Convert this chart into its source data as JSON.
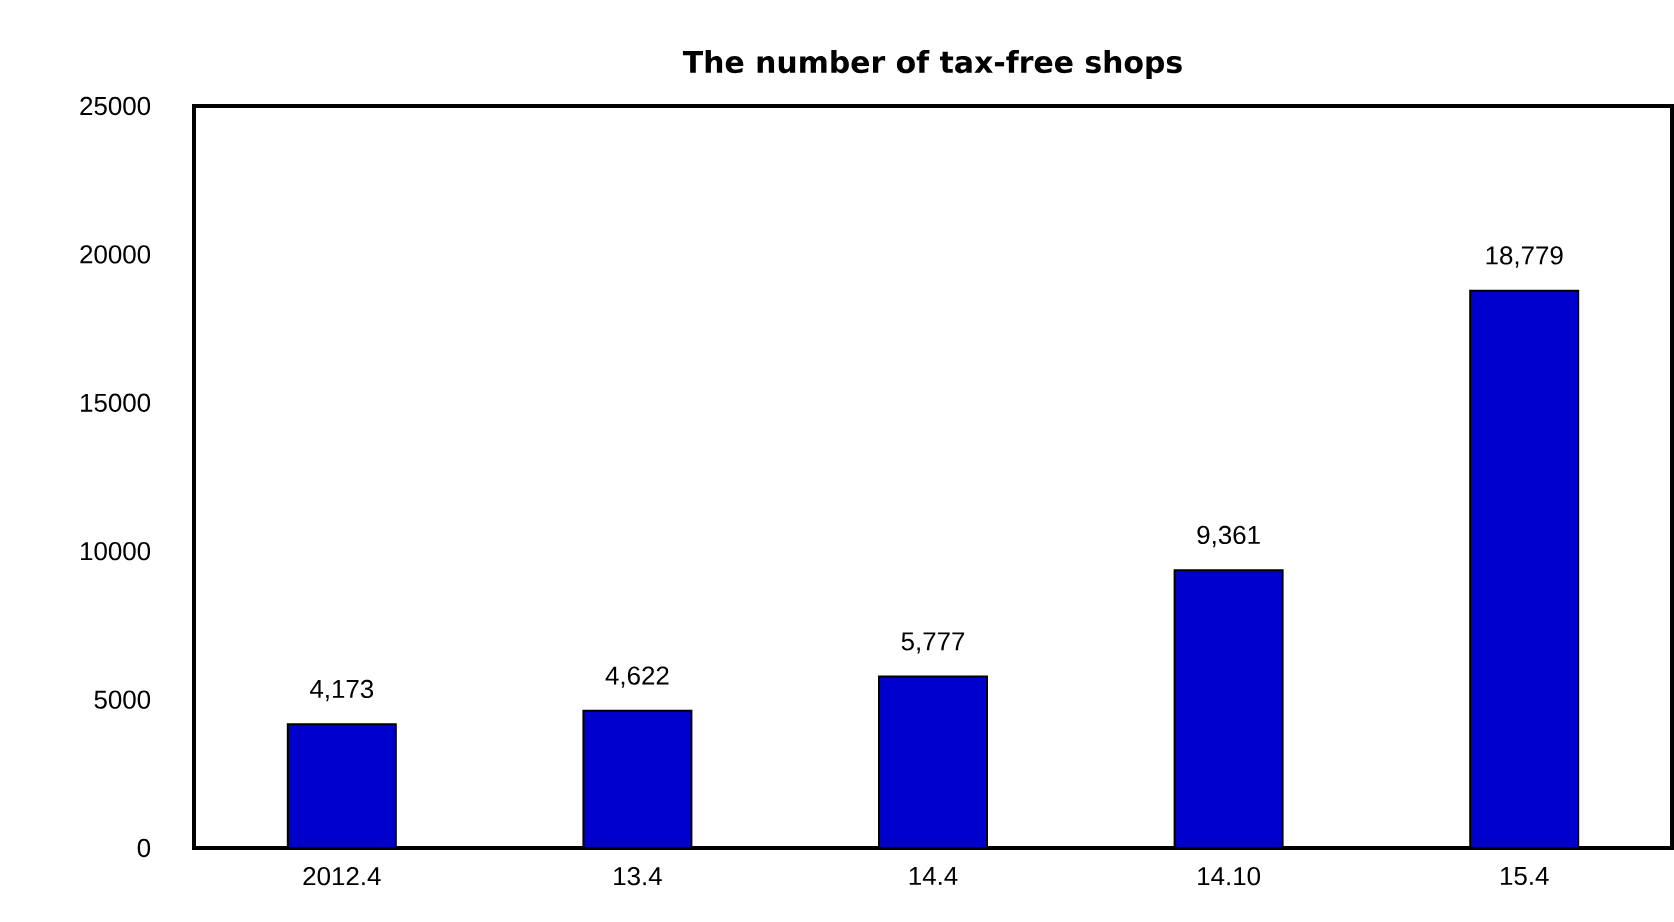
{
  "chart_data": {
    "type": "bar",
    "title": "The number of tax-free shops",
    "categories": [
      "2012.4",
      "13.4",
      "14.4",
      "14.10",
      "15.4"
    ],
    "values": [
      4173,
      4622,
      5777,
      9361,
      18779
    ],
    "value_labels": [
      "4,173",
      "4,622",
      "5,777",
      "9,361",
      "18,779"
    ],
    "color": "#0000cc",
    "ylim": [
      0,
      25000
    ],
    "yticks": [
      0,
      5000,
      10000,
      15000,
      20000,
      25000
    ],
    "grid": false
  }
}
